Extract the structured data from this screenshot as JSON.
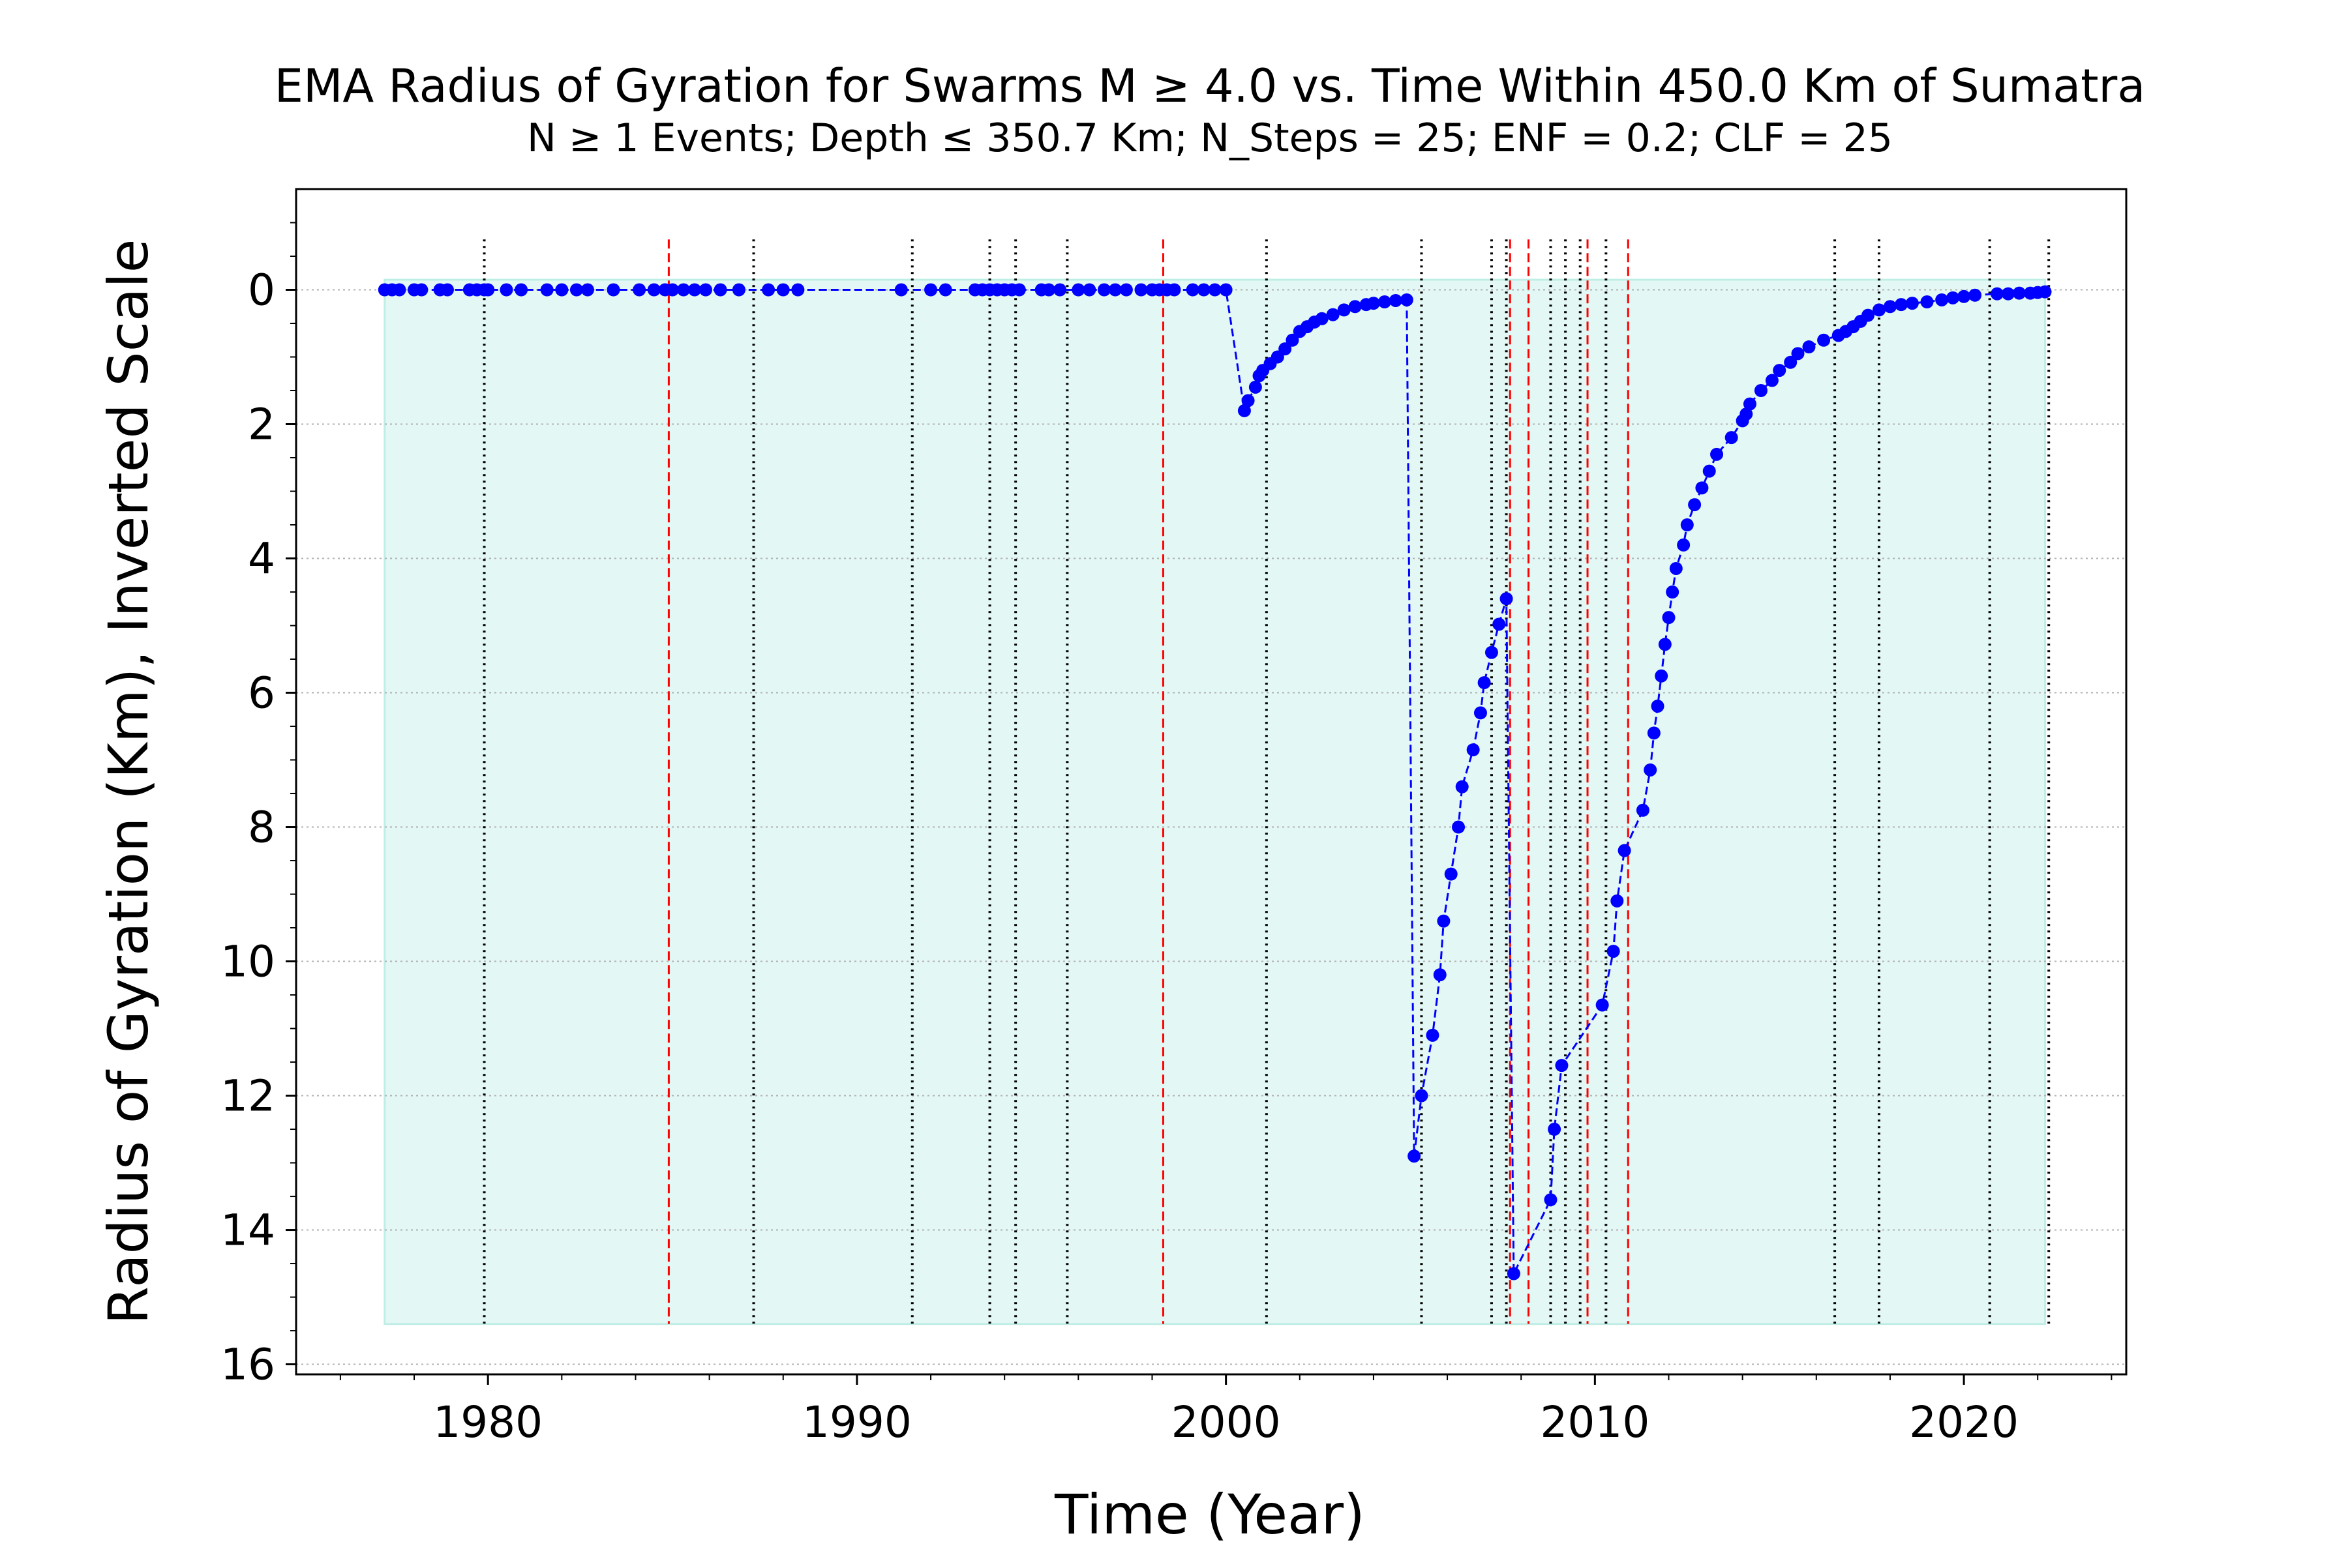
{
  "chart_data": {
    "type": "line",
    "title": "EMA Radius of Gyration for Swarms M  ≥ 4.0 vs. Time Within 450.0 Km of Sumatra",
    "subtitle": "N  ≥  1 Events;  Depth  ≤  350.7 Km; N_Steps = 25; ENF = 0.2; CLF = 25",
    "xlabel": "Time (Year)",
    "ylabel": "Radius of Gyration (Km), Inverted Scale",
    "xlim": [
      1974.8,
      2024.4
    ],
    "ylim": [
      16.15,
      -1.5
    ],
    "y_inverted": true,
    "grid": true,
    "x_ticks": [
      1980,
      1990,
      2000,
      2010,
      2020
    ],
    "y_ticks": [
      0,
      2,
      4,
      6,
      8,
      10,
      12,
      14,
      16
    ],
    "x_tick_labels": [
      "1980",
      "1990",
      "2000",
      "2010",
      "2020"
    ],
    "y_tick_labels": [
      "0",
      "2",
      "4",
      "6",
      "8",
      "10",
      "12",
      "14",
      "16"
    ],
    "fill_baseline": 15.4,
    "colors": {
      "series": "#0000ff",
      "fill": "#e3f7f4",
      "fill_edge": "#bfeee6",
      "red_lines": "#ff0000",
      "black_lines": "#000000",
      "grid": "#b0b0b0"
    },
    "red_event_lines": [
      1984.9,
      1998.3,
      2007.7,
      2008.2,
      2009.8,
      2010.9
    ],
    "black_event_lines": [
      1979.9,
      1987.2,
      1991.5,
      1993.6,
      1994.3,
      1995.7,
      2001.1,
      2005.3,
      2007.2,
      2007.6,
      2008.8,
      2009.2,
      2009.6,
      2010.3,
      2016.5,
      2017.7,
      2020.7,
      2022.3
    ],
    "series": [
      {
        "x": [
          1977.2,
          1977.4,
          1977.6,
          1978.0,
          1978.2,
          1978.7,
          1978.9,
          1979.5,
          1979.7,
          1979.9,
          1980.0,
          1980.5,
          1980.9,
          1981.6,
          1982.0,
          1982.4,
          1982.7,
          1983.4,
          1984.1,
          1984.5,
          1984.8,
          1985.0,
          1985.3,
          1985.6,
          1985.9,
          1986.3,
          1986.8,
          1987.6,
          1988.0,
          1988.4,
          1991.2,
          1992.0,
          1992.4,
          1993.2,
          1993.4,
          1993.6,
          1993.8,
          1994.0,
          1994.2,
          1994.4,
          1995.0,
          1995.2,
          1995.5,
          1996.0,
          1996.3,
          1996.7,
          1997.0,
          1997.3,
          1997.7,
          1998.0,
          1998.2,
          1998.4,
          1998.6,
          1999.1,
          1999.4,
          1999.7,
          2000.0,
          2000.5,
          2000.6,
          2000.8,
          2000.9,
          2001.0,
          2001.2,
          2001.4,
          2001.6,
          2001.8,
          2002.0,
          2002.2,
          2002.4,
          2002.6,
          2002.9,
          2003.2,
          2003.5,
          2003.8,
          2004.0,
          2004.3,
          2004.6,
          2004.9,
          2005.1,
          2005.3,
          2005.6,
          2005.8,
          2005.9,
          2006.1,
          2006.3,
          2006.4,
          2006.7,
          2006.9,
          2007.0,
          2007.2,
          2007.4,
          2007.6,
          2007.8,
          2008.8,
          2008.9,
          2009.1,
          2010.2,
          2010.5,
          2010.6,
          2010.8,
          2011.3,
          2011.5,
          2011.6,
          2011.7,
          2011.8,
          2011.9,
          2012.0,
          2012.1,
          2012.2,
          2012.4,
          2012.5,
          2012.7,
          2012.9,
          2013.1,
          2013.3,
          2013.7,
          2014.0,
          2014.1,
          2014.2,
          2014.5,
          2014.8,
          2015.0,
          2015.3,
          2015.5,
          2015.8,
          2016.2,
          2016.6,
          2016.8,
          2017.0,
          2017.2,
          2017.4,
          2017.7,
          2018.0,
          2018.3,
          2018.6,
          2019.0,
          2019.4,
          2019.7,
          2020.0,
          2020.3,
          2020.9,
          2021.2,
          2021.5,
          2021.8,
          2022.0,
          2022.2
        ],
        "y": [
          0,
          0,
          0,
          0,
          0,
          0,
          0,
          0,
          0,
          0,
          0,
          0,
          0,
          0,
          0,
          0,
          0,
          0,
          0,
          0,
          0,
          0,
          0,
          0,
          0,
          0,
          0,
          0,
          0,
          0,
          0,
          0,
          0,
          0,
          0,
          0,
          0,
          0,
          0,
          0,
          0,
          0,
          0,
          0,
          0,
          0,
          0,
          0,
          0,
          0,
          0,
          0,
          0,
          0,
          0,
          0,
          0,
          1.8,
          1.65,
          1.45,
          1.28,
          1.2,
          1.1,
          1.0,
          0.88,
          0.75,
          0.62,
          0.55,
          0.48,
          0.43,
          0.37,
          0.3,
          0.25,
          0.22,
          0.2,
          0.18,
          0.16,
          0.15,
          12.9,
          12.0,
          11.1,
          10.2,
          9.4,
          8.7,
          8.0,
          7.4,
          6.85,
          6.3,
          5.85,
          5.4,
          4.98,
          4.6,
          14.65,
          13.55,
          12.5,
          11.55,
          10.65,
          9.85,
          9.1,
          8.35,
          7.75,
          7.15,
          6.6,
          6.2,
          5.75,
          5.28,
          4.88,
          4.5,
          4.15,
          3.8,
          3.5,
          3.2,
          2.95,
          2.7,
          2.45,
          2.2,
          1.95,
          1.85,
          1.7,
          1.5,
          1.35,
          1.2,
          1.08,
          0.95,
          0.85,
          0.75,
          0.68,
          0.62,
          0.55,
          0.47,
          0.38,
          0.3,
          0.25,
          0.22,
          0.2,
          0.18,
          0.15,
          0.12,
          0.1,
          0.08,
          0.06,
          0.06,
          0.05,
          0.05,
          0.04,
          0.03
        ]
      }
    ]
  }
}
